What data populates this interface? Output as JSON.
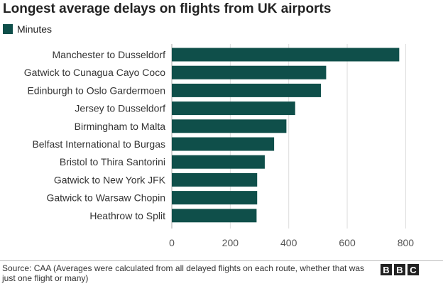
{
  "chart_data": {
    "type": "bar",
    "orientation": "horizontal",
    "title": "Longest average delays on flights from UK airports",
    "series": [
      {
        "name": "Minutes",
        "color": "#0f4f4a",
        "values": [
          778,
          528,
          510,
          422,
          392,
          350,
          318,
          292,
          292,
          290
        ]
      }
    ],
    "categories": [
      "Manchester to Dusseldorf",
      "Gatwick to Cunagua Cayo Coco",
      "Edinburgh to Oslo Gardermoen",
      "Jersey to Dusseldorf",
      "Birmingham to Malta",
      "Belfast International to Burgas",
      "Bristol to Thira Santorini",
      "Gatwick to New York JFK",
      "Gatwick to Warsaw Chopin",
      "Heathrow to Split"
    ],
    "xlim": [
      0,
      850
    ],
    "xticks": [
      0,
      200,
      400,
      600,
      800
    ],
    "xlabel": "",
    "ylabel": "",
    "grid": "vertical",
    "legend": "top-left"
  },
  "source": "Source: CAA (Averages were calculated from all delayed flights on each route, whether that was just one flight or many)",
  "logo": [
    "B",
    "B",
    "C"
  ]
}
